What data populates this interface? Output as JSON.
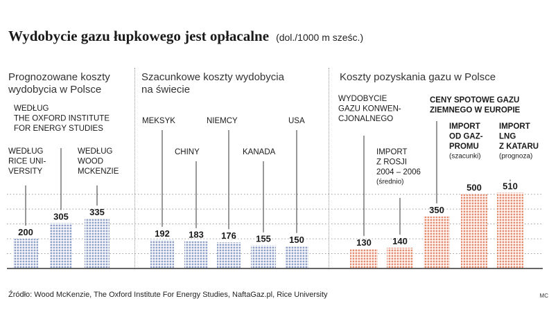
{
  "header": {
    "title": "Wydobycie gazu łupkowego jest opłacalne",
    "unit": "(dol./1000 m sześc.)"
  },
  "sections": [
    {
      "title": [
        "Prognozowane koszty",
        "wydobycia w Polsce"
      ]
    },
    {
      "title": [
        "Szacunkowe koszty wydobycia",
        "na świecie"
      ]
    },
    {
      "title": [
        "Koszty pozyskania gazu w Polsce"
      ]
    }
  ],
  "footer": {
    "source": "Źródło: Wood McKenzie, The Oxford Institute For Energy Studies, NaftaGaz.pl, Rice University",
    "credit": "MC"
  },
  "colors": {
    "blue": "#8f9fc6",
    "red": "#e68a6d",
    "axis": "#333333",
    "grid": "#9a9a9a"
  },
  "chart_data": {
    "type": "bar",
    "ylim": [
      0,
      600
    ],
    "grid": "dotted",
    "categories": [
      "WEDŁUG RICE UNIVERSITY",
      "WEDŁUG THE OXFORD INSTITUTE FOR ENERGY STUDIES",
      "WEDŁUG WOOD MCKENZIE",
      "MEKSYK",
      "CHINY",
      "NIEMCY",
      "KANADA",
      "USA",
      "WYDOBYCIE GAZU KONWENCJONALNEGO",
      "IMPORT Z ROSJI 2004 – 2006 (średnio)",
      "CENY SPOTOWE GAZU ZIEMNEGO W EUROPIE",
      "IMPORT OD GAZPROMU (szacunki)",
      "IMPORT LNG Z KATARU (prognoza)"
    ],
    "values": [
      200,
      305,
      335,
      192,
      183,
      176,
      155,
      150,
      130,
      140,
      350,
      500,
      510
    ],
    "bars": [
      {
        "value": "200",
        "label": [
          "WEDŁUG",
          "RICE UNI-",
          "VERSITY"
        ],
        "bold": false,
        "note": ""
      },
      {
        "value": "305",
        "label": [
          "WEDŁUG",
          "THE OXFORD INSTITUTE",
          "FOR ENERGY STUDIES"
        ],
        "bold": false,
        "note": ""
      },
      {
        "value": "335",
        "label": [
          "WEDŁUG",
          "WOOD",
          "MCKENZIE"
        ],
        "bold": false,
        "note": ""
      },
      {
        "value": "192",
        "label": [
          "MEKSYK"
        ],
        "bold": false,
        "note": ""
      },
      {
        "value": "183",
        "label": [
          "CHINY"
        ],
        "bold": false,
        "note": ""
      },
      {
        "value": "176",
        "label": [
          "NIEMCY"
        ],
        "bold": false,
        "note": ""
      },
      {
        "value": "155",
        "label": [
          "KANADA"
        ],
        "bold": false,
        "note": ""
      },
      {
        "value": "150",
        "label": [
          "USA"
        ],
        "bold": false,
        "note": ""
      },
      {
        "value": "130",
        "label": [
          "WYDOBYCIE",
          "GAZU KONWEN-",
          "CJONALNEGO"
        ],
        "bold": false,
        "note": ""
      },
      {
        "value": "140",
        "label": [
          "IMPORT",
          "Z ROSJI",
          "2004 – 2006"
        ],
        "bold": false,
        "note": "(średnio)"
      },
      {
        "value": "350",
        "label": [
          "CENY SPOTOWE GAZU",
          "ZIEMNEGO W EUROPIE"
        ],
        "bold": true,
        "note": ""
      },
      {
        "value": "500",
        "label": [
          "IMPORT",
          "OD GAZ-",
          "PROMU"
        ],
        "bold": true,
        "note": "(szacunki)"
      },
      {
        "value": "510",
        "label": [
          "IMPORT",
          "LNG",
          "Z KATARU"
        ],
        "bold": true,
        "note": "(prognoza)"
      }
    ]
  }
}
